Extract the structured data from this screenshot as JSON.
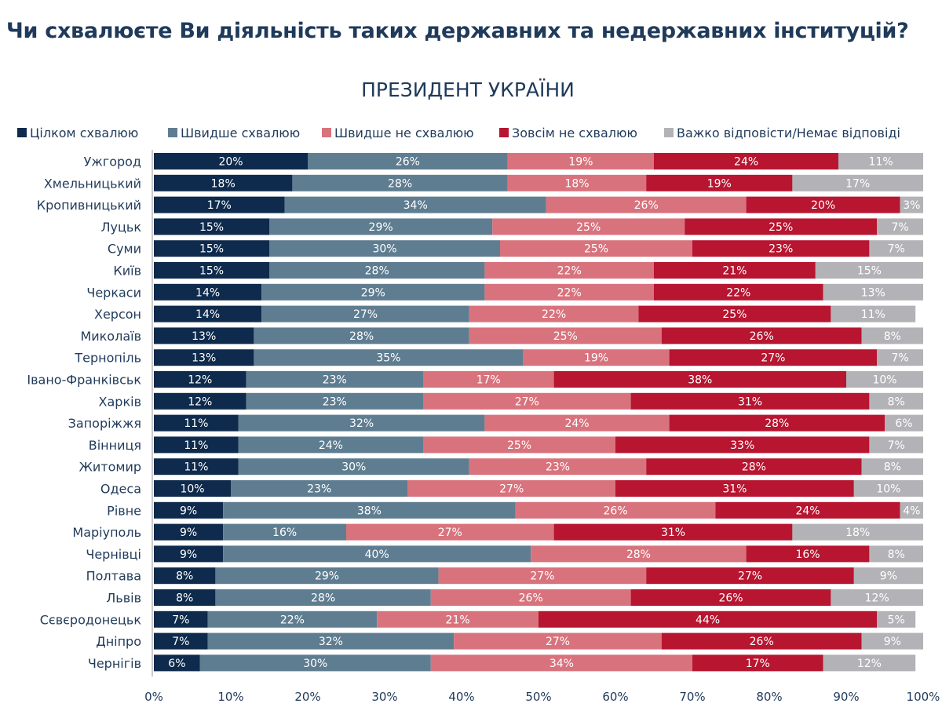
{
  "chart_data": {
    "type": "bar",
    "orientation": "horizontal",
    "stacked": true,
    "title": "Чи схвалюєте Ви діяльність таких державних та недержавних інституцій?",
    "subtitle": "ПРЕЗИДЕНТ УКРАЇНИ",
    "legend_position": "top",
    "xlim": [
      0,
      100
    ],
    "x_ticks": [
      "0%",
      "10%",
      "20%",
      "30%",
      "40%",
      "50%",
      "60%",
      "70%",
      "80%",
      "90%",
      "100%"
    ],
    "grid": false,
    "categories": [
      "Ужгород",
      "Хмельницький",
      "Кропивницький",
      "Луцьк",
      "Суми",
      "Київ",
      "Черкаси",
      "Херсон",
      "Миколаїв",
      "Тернопіль",
      "Івано-Франківськ",
      "Харків",
      "Запоріжжя",
      "Вінниця",
      "Житомир",
      "Одеса",
      "Рівне",
      "Маріуполь",
      "Чернівці",
      "Полтава",
      "Львів",
      "Сєвєродонецьк",
      "Дніпро",
      "Чернігів"
    ],
    "series": [
      {
        "name": "Цілком схвалюю",
        "color": "#0e2a4c",
        "values": [
          20,
          18,
          17,
          15,
          15,
          15,
          14,
          14,
          13,
          13,
          12,
          12,
          11,
          11,
          11,
          10,
          9,
          9,
          9,
          8,
          8,
          7,
          7,
          6
        ]
      },
      {
        "name": "Швидше схвалюю",
        "color": "#5f7d91",
        "values": [
          26,
          28,
          34,
          29,
          30,
          28,
          29,
          27,
          28,
          35,
          23,
          23,
          32,
          24,
          30,
          23,
          38,
          16,
          40,
          29,
          28,
          22,
          32,
          30
        ]
      },
      {
        "name": "Швидше не схвалюю",
        "color": "#d8737d",
        "values": [
          19,
          18,
          26,
          25,
          25,
          22,
          22,
          22,
          25,
          19,
          17,
          27,
          24,
          25,
          23,
          27,
          26,
          27,
          28,
          27,
          26,
          21,
          27,
          34
        ]
      },
      {
        "name": "Зовсім не схвалюю",
        "color": "#b71530",
        "values": [
          24,
          19,
          20,
          25,
          23,
          21,
          22,
          25,
          26,
          27,
          38,
          31,
          28,
          33,
          28,
          31,
          24,
          31,
          16,
          27,
          26,
          44,
          26,
          17
        ]
      },
      {
        "name": "Важко відповісти/Немає відповіді",
        "color": "#b3b3b7",
        "values": [
          11,
          17,
          3,
          7,
          7,
          15,
          13,
          11,
          8,
          7,
          10,
          8,
          6,
          7,
          8,
          10,
          4,
          18,
          8,
          9,
          12,
          5,
          9,
          12
        ]
      }
    ]
  }
}
